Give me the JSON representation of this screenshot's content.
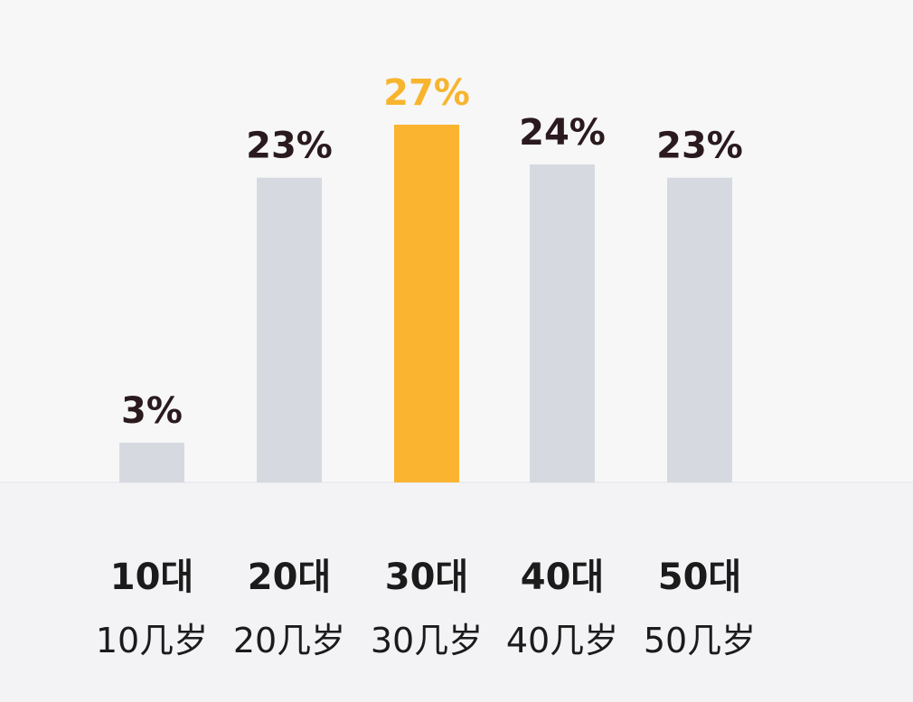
{
  "chart_data": {
    "type": "bar",
    "categories": [
      "10대",
      "20대",
      "30대",
      "40대",
      "50대"
    ],
    "category_translations": [
      "10几岁",
      "20几岁",
      "30几岁",
      "40几岁",
      "50几岁"
    ],
    "values": [
      3,
      23,
      27,
      24,
      23
    ],
    "value_labels": [
      "3%",
      "23%",
      "27%",
      "24%",
      "23%"
    ],
    "highlight_index": 2,
    "ylim": [
      0,
      27
    ],
    "grid": false,
    "legend": "none"
  },
  "colors": {
    "background": "#f7f7f8",
    "baseline_area": "#f3f3f6",
    "bar": "#d6dae0",
    "bar_highlight": "#fbb42f",
    "label": "#2a1a1e",
    "label_highlight": "#f7b52e"
  }
}
